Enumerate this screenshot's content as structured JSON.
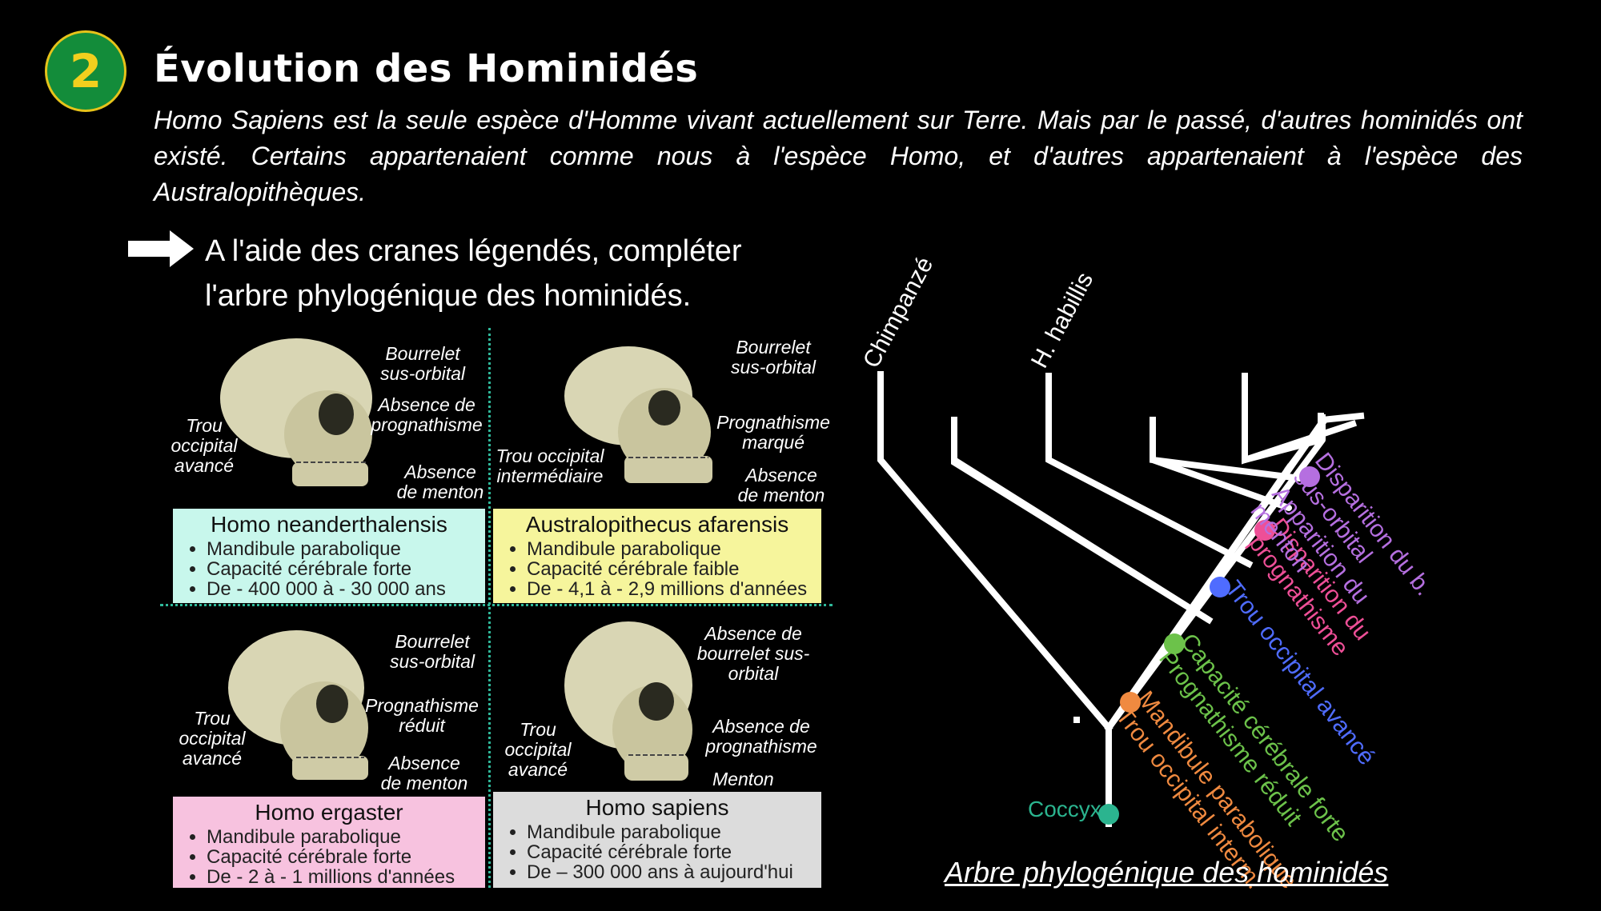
{
  "header": {
    "badge": "2",
    "title": "Évolution des Hominidés",
    "intro": "Homo Sapiens est la seule espèce d'Homme vivant actuellement sur Terre. Mais par le passé, d'autres hominidés ont existé. Certains appartenaient comme nous à l'espèce Homo, et d'autres  appartenaient à l'espèce des Australopithèques."
  },
  "instruction": {
    "line1": "A l'aide des cranes légendés, compléter",
    "line2": "l'arbre phylogénique des hominidés."
  },
  "cards": [
    {
      "species": "Homo neanderthalensis",
      "color": "#c8f7ec",
      "traits": [
        "Mandibule parabolique",
        "Capacité cérébrale forte",
        "De - 400 000 à - 30 000 ans"
      ],
      "labels": [
        "Bourrelet sus-orbital",
        "Absence de prognathisme",
        "Trou occipital avancé",
        "Absence de menton"
      ]
    },
    {
      "species": "Australopithecus afarensis",
      "color": "#f6f59c",
      "traits": [
        "Mandibule parabolique",
        "Capacité cérébrale faible",
        "De - 4,1 à - 2,9 millions d'années"
      ],
      "labels": [
        "Bourrelet sus-orbital",
        "Prognathisme marqué",
        "Trou occipital intermédiaire",
        "Absence de menton"
      ]
    },
    {
      "species": "Homo ergaster",
      "color": "#f7c2df",
      "traits": [
        "Mandibule parabolique",
        "Capacité cérébrale forte",
        "De - 2 à - 1 millions d'années"
      ],
      "labels": [
        "Bourrelet sus-orbital",
        "Prognathisme réduit",
        "Trou occipital avancé",
        "Absence de menton"
      ]
    },
    {
      "species": "Homo sapiens",
      "color": "#dcdcdc",
      "traits": [
        "Mandibule parabolique",
        "Capacité cérébrale forte",
        "De – 300 000 ans à aujourd'hui"
      ],
      "labels": [
        "Absence de bourrelet sus-orbital",
        "Absence de prognathisme",
        "Trou occipital avancé",
        "Menton"
      ]
    }
  ],
  "tree": {
    "tips": [
      "Chimpanzé",
      "H. habillis"
    ],
    "root": "Coccyx",
    "characters": [
      {
        "text": [
          "Mandibule parabolique",
          "Trou occipital interm."
        ],
        "color": "#f08a40"
      },
      {
        "text": [
          "Capacité cérébrale forte",
          "Prognathisme réduit"
        ],
        "color": "#6cc24a"
      },
      {
        "text": [
          "Trou occipital avancé"
        ],
        "color": "#4f6cff"
      },
      {
        "text": [
          "Disparition du",
          "prognathisme"
        ],
        "color": "#ee4f97"
      },
      {
        "text": [
          "Disparition du b.",
          "sus-orbital",
          "Apparition du",
          "menton"
        ],
        "color": "#b56fe0"
      }
    ],
    "root_color": "#2bb48f",
    "caption": "Arbre phylogénique des hominidés"
  }
}
